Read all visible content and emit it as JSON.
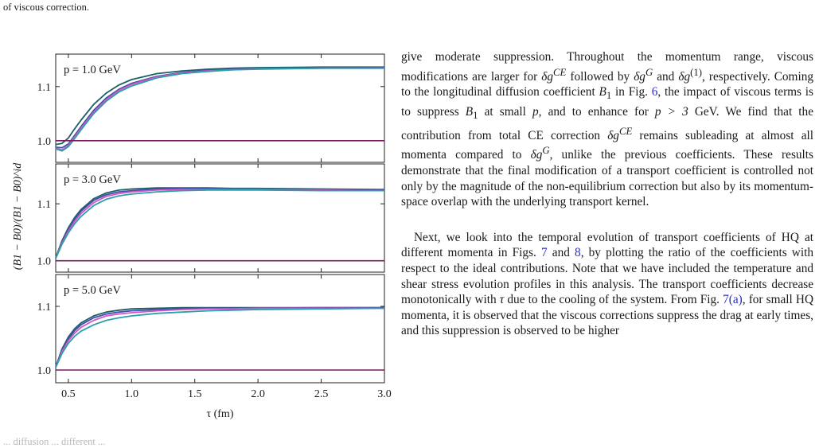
{
  "page": {
    "top_caption": "of viscous correction.",
    "bottom_caption_fragment": "... diffusion ... different ..."
  },
  "chart_data": {
    "type": "line",
    "xlabel": "τ (fm)",
    "ylabel": "(B1 − B0)/(B1 − B0)^id",
    "xlim": [
      0.4,
      3.0
    ],
    "xticks": [
      "0.5",
      "1.0",
      "1.5",
      "2.0",
      "2.5",
      "3.0"
    ],
    "colors": [
      "#1d5f66",
      "#3f4faa",
      "#d455c8",
      "#2aa0a8",
      "#7a1a5a"
    ],
    "panels": [
      {
        "label": "p = 1.0 GeV",
        "ylim": [
          0.96,
          1.16
        ],
        "yticks": [
          "1.0",
          "1.1"
        ],
        "x": [
          0.4,
          0.45,
          0.5,
          0.55,
          0.6,
          0.7,
          0.8,
          0.9,
          1.0,
          1.2,
          1.4,
          1.6,
          1.8,
          2.0,
          2.5,
          3.0
        ],
        "series": [
          {
            "values": [
              0.993,
              0.995,
              1.005,
              1.022,
              1.038,
              1.067,
              1.088,
              1.103,
              1.113,
              1.124,
              1.129,
              1.132,
              1.134,
              1.135,
              1.136,
              1.136
            ]
          },
          {
            "values": [
              0.988,
              0.987,
              0.994,
              1.01,
              1.026,
              1.056,
              1.079,
              1.095,
              1.106,
              1.119,
              1.126,
              1.13,
              1.132,
              1.133,
              1.134,
              1.135
            ]
          },
          {
            "values": [
              0.986,
              0.983,
              0.991,
              1.007,
              1.023,
              1.053,
              1.076,
              1.093,
              1.104,
              1.118,
              1.125,
              1.129,
              1.131,
              1.133,
              1.134,
              1.134
            ]
          },
          {
            "values": [
              0.985,
              0.981,
              0.989,
              1.004,
              1.02,
              1.05,
              1.073,
              1.09,
              1.101,
              1.116,
              1.124,
              1.128,
              1.131,
              1.132,
              1.134,
              1.134
            ]
          },
          {
            "values": [
              1.0,
              1.0,
              1.0,
              1.0,
              1.0,
              1.0,
              1.0,
              1.0,
              1.0,
              1.0,
              1.0,
              1.0,
              1.0,
              1.0,
              1.0,
              1.0
            ]
          }
        ]
      },
      {
        "label": "p = 3.0 GeV",
        "ylim": [
          0.98,
          1.17
        ],
        "yticks": [
          "1.0",
          "1.1"
        ],
        "x": [
          0.4,
          0.45,
          0.5,
          0.55,
          0.6,
          0.7,
          0.8,
          0.9,
          1.0,
          1.2,
          1.4,
          1.6,
          1.8,
          2.0,
          2.5,
          3.0
        ],
        "series": [
          {
            "values": [
              1.005,
              1.035,
              1.058,
              1.076,
              1.09,
              1.109,
              1.119,
              1.124,
              1.126,
              1.128,
              1.128,
              1.128,
              1.127,
              1.127,
              1.126,
              1.125
            ]
          },
          {
            "values": [
              1.005,
              1.033,
              1.055,
              1.073,
              1.087,
              1.106,
              1.116,
              1.121,
              1.123,
              1.126,
              1.127,
              1.127,
              1.126,
              1.126,
              1.125,
              1.124
            ]
          },
          {
            "values": [
              1.004,
              1.031,
              1.052,
              1.069,
              1.083,
              1.102,
              1.113,
              1.118,
              1.121,
              1.124,
              1.125,
              1.125,
              1.125,
              1.125,
              1.124,
              1.123
            ]
          },
          {
            "values": [
              1.004,
              1.029,
              1.049,
              1.065,
              1.078,
              1.097,
              1.108,
              1.114,
              1.117,
              1.121,
              1.123,
              1.124,
              1.124,
              1.124,
              1.123,
              1.123
            ]
          },
          {
            "values": [
              1.0,
              1.0,
              1.0,
              1.0,
              1.0,
              1.0,
              1.0,
              1.0,
              1.0,
              1.0,
              1.0,
              1.0,
              1.0,
              1.0,
              1.0,
              1.0
            ]
          }
        ]
      },
      {
        "label": "p = 5.0 GeV",
        "ylim": [
          0.98,
          1.15
        ],
        "yticks": [
          "1.0",
          "1.1"
        ],
        "x": [
          0.4,
          0.45,
          0.5,
          0.55,
          0.6,
          0.7,
          0.8,
          0.9,
          1.0,
          1.2,
          1.4,
          1.6,
          1.8,
          2.0,
          2.5,
          3.0
        ],
        "series": [
          {
            "values": [
              1.005,
              1.033,
              1.052,
              1.065,
              1.074,
              1.085,
              1.091,
              1.094,
              1.096,
              1.097,
              1.098,
              1.098,
              1.098,
              1.098,
              1.098,
              1.098
            ]
          },
          {
            "values": [
              1.005,
              1.031,
              1.049,
              1.062,
              1.071,
              1.082,
              1.088,
              1.091,
              1.093,
              1.095,
              1.096,
              1.097,
              1.097,
              1.097,
              1.098,
              1.098
            ]
          },
          {
            "values": [
              1.004,
              1.029,
              1.046,
              1.058,
              1.067,
              1.078,
              1.085,
              1.088,
              1.09,
              1.093,
              1.095,
              1.096,
              1.096,
              1.097,
              1.097,
              1.097
            ]
          },
          {
            "values": [
              1.004,
              1.026,
              1.042,
              1.053,
              1.061,
              1.071,
              1.078,
              1.082,
              1.085,
              1.089,
              1.091,
              1.093,
              1.094,
              1.095,
              1.096,
              1.097
            ]
          },
          {
            "values": [
              1.0,
              1.0,
              1.0,
              1.0,
              1.0,
              1.0,
              1.0,
              1.0,
              1.0,
              1.0,
              1.0,
              1.0,
              1.0,
              1.0,
              1.0,
              1.0
            ]
          }
        ]
      }
    ]
  },
  "body": {
    "p1": [
      "give moderate suppression. Throughout the momentum range, viscous modifications are larger for ",
      "δg",
      "CE",
      " followed by ",
      "δg",
      "G",
      " and ",
      "δg",
      "(1)",
      ", respectively. Coming to the longitudinal diffusion coefficient ",
      "B",
      "1",
      " in Fig. ",
      "6",
      ", the impact of viscous terms is to suppress ",
      "B",
      "1",
      " at small ",
      "p",
      ", and to enhance for ",
      "p > 3",
      " GeV. We find that the contribution from total CE correction ",
      "δg",
      "CE",
      " remains subleading at almost all momenta compared to ",
      "δg",
      "G",
      ", unlike the previous coefficients. These results demonstrate that the final modification of a transport coefficient is controlled not only by the magnitude of the non-equilibrium correction but also by its momentum-space overlap with the underlying transport kernel."
    ],
    "p2": [
      "Next, we look into the temporal evolution of transport coefficients of HQ at different momenta in Figs. ",
      "7",
      " and ",
      "8",
      ", by plotting the ratio of the coefficients with respect to the ideal contributions. Note that we have included the temperature and shear stress evolution profiles in this analysis. The transport coefficients decrease monotonically with ",
      "τ",
      " due to the cooling of the system. From Fig. ",
      "7(a)",
      ", for small HQ momenta, it is observed that the viscous corrections suppress the drag at early times, and this suppression is observed to be higher"
    ]
  }
}
